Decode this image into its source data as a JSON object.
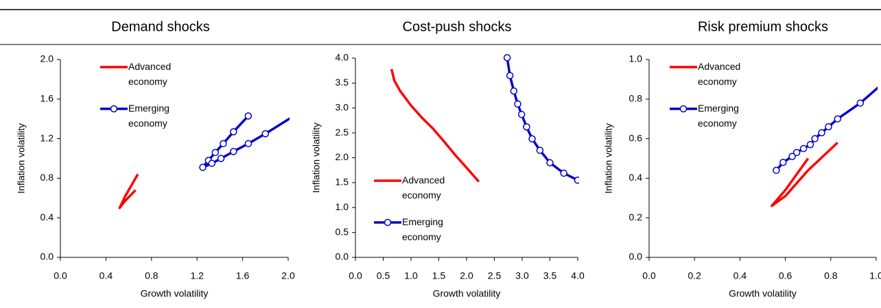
{
  "chart_data": [
    {
      "type": "line",
      "title": "Demand shocks",
      "x_label": "Growth volatility",
      "y_label": "Inflation volatility",
      "xlim": [
        0,
        2
      ],
      "ylim": [
        0,
        2
      ],
      "xticks": [
        {
          "value": 0,
          "label": "0.0"
        },
        0.4,
        0.8,
        1.2,
        1.6,
        {
          "value": 2,
          "label": "2.0"
        }
      ],
      "yticks": [
        {
          "value": 0,
          "label": "0.0"
        },
        0.4,
        0.8,
        1.2,
        1.6,
        {
          "value": 2,
          "label": "2.0"
        }
      ],
      "legend_position": "upper left",
      "series": [
        {
          "name": "Advanced economy",
          "color": "#ff0000",
          "marker": "none",
          "x": [
            0.68,
            0.62,
            0.57,
            0.52,
            0.56,
            0.61,
            0.66
          ],
          "values": [
            0.84,
            0.72,
            0.62,
            0.5,
            0.56,
            0.62,
            0.68
          ]
        },
        {
          "name": "Emerging economy",
          "color": "#0000cc",
          "marker": "circle",
          "x": [
            1.65,
            1.52,
            1.43,
            1.36,
            1.3,
            1.25,
            1.33,
            1.41,
            1.52,
            1.65,
            1.8,
            2.05
          ],
          "values": [
            1.43,
            1.27,
            1.15,
            1.06,
            0.98,
            0.91,
            0.95,
            1.0,
            1.07,
            1.15,
            1.25,
            1.43
          ]
        }
      ]
    },
    {
      "type": "line",
      "title": "Cost-push shocks",
      "x_label": "Growth volatility",
      "y_label": "Inflation volatility",
      "xlim": [
        0,
        4
      ],
      "ylim": [
        0,
        4
      ],
      "xticks": [
        {
          "value": 0,
          "label": "0.0"
        },
        0.5,
        {
          "value": 1,
          "label": "1.0"
        },
        1.5,
        {
          "value": 2,
          "label": "2.0"
        },
        2.5,
        {
          "value": 3,
          "label": "3.0"
        },
        3.5,
        {
          "value": 4,
          "label": "4.0"
        }
      ],
      "yticks": [
        {
          "value": 0,
          "label": "0.0"
        },
        0.5,
        {
          "value": 1,
          "label": "1.0"
        },
        1.5,
        {
          "value": 2,
          "label": "2.0"
        },
        2.5,
        {
          "value": 3,
          "label": "3.0"
        },
        3.5,
        {
          "value": 4,
          "label": "4.0"
        }
      ],
      "legend_position": "lower left",
      "series": [
        {
          "name": "Advanced economy",
          "color": "#ff0000",
          "marker": "none",
          "x": [
            0.65,
            0.7,
            0.8,
            1.0,
            1.2,
            1.4,
            1.6,
            1.8,
            2.0,
            2.22
          ],
          "values": [
            3.78,
            3.55,
            3.35,
            3.05,
            2.8,
            2.58,
            2.32,
            2.05,
            1.8,
            1.52
          ]
        },
        {
          "name": "Emerging economy",
          "color": "#0000cc",
          "marker": "circle",
          "x": [
            2.73,
            2.78,
            2.85,
            2.92,
            2.99,
            3.08,
            3.18,
            3.32,
            3.5,
            3.75,
            4.0
          ],
          "values": [
            4.01,
            3.65,
            3.34,
            3.08,
            2.87,
            2.62,
            2.38,
            2.15,
            1.9,
            1.69,
            1.55
          ]
        }
      ]
    },
    {
      "type": "line",
      "title": "Risk premium shocks",
      "x_label": "Growth volatility",
      "y_label": "Inflation volatility",
      "xlim": [
        0,
        1
      ],
      "ylim": [
        0,
        1
      ],
      "xticks": [
        {
          "value": 0,
          "label": "0.0"
        },
        0.2,
        0.4,
        0.6,
        0.8,
        {
          "value": 1,
          "label": "1.0"
        }
      ],
      "yticks": [
        {
          "value": 0,
          "label": "0.0"
        },
        0.2,
        0.4,
        0.6,
        0.8,
        {
          "value": 1,
          "label": "1.0"
        }
      ],
      "legend_position": "upper left",
      "series": [
        {
          "name": "Advanced economy",
          "color": "#ff0000",
          "marker": "none",
          "x": [
            0.7,
            0.65,
            0.6,
            0.54,
            0.6,
            0.7,
            0.83
          ],
          "values": [
            0.5,
            0.42,
            0.34,
            0.26,
            0.31,
            0.44,
            0.58
          ]
        },
        {
          "name": "Emerging economy",
          "color": "#0000cc",
          "marker": "circle",
          "x": [
            0.56,
            0.59,
            0.63,
            0.65,
            0.68,
            0.71,
            0.73,
            0.76,
            0.79,
            0.83,
            0.93,
            1.05
          ],
          "values": [
            0.44,
            0.48,
            0.51,
            0.53,
            0.55,
            0.57,
            0.6,
            0.63,
            0.66,
            0.7,
            0.78,
            0.9
          ]
        }
      ]
    }
  ]
}
